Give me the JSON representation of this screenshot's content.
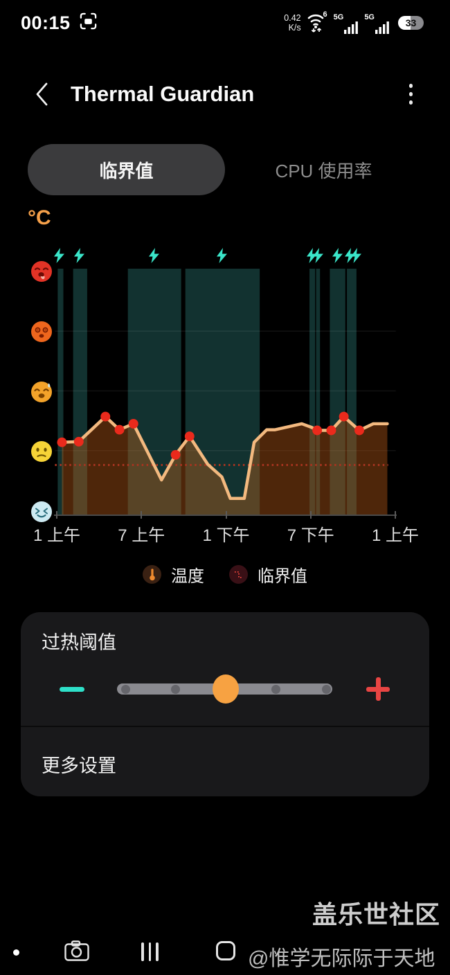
{
  "status_bar": {
    "time": "00:15",
    "net_speed_value": "0.42",
    "net_speed_unit": "K/s",
    "wifi_generation": "6",
    "signal_label_1": "5G",
    "signal_label_2": "5G",
    "battery_percent": "33"
  },
  "header": {
    "title": "Thermal Guardian"
  },
  "tabs": [
    {
      "label": "临界值",
      "active": true
    },
    {
      "label": "CPU 使用率",
      "active": false
    }
  ],
  "chart_data": {
    "type": "line",
    "unit_label": "°C",
    "x_tick_labels": [
      "1 上午",
      "7 上午",
      "1 下午",
      "7 下午",
      "1 上午"
    ],
    "x_axis_hours_range": [
      0,
      24
    ],
    "y_axis": {
      "style": "emoji-levels",
      "levels_bottom_to_top": [
        "face-relieved-blue",
        "face-displeased-yellow",
        "face-weary-amber",
        "face-hot-orange",
        "face-overheated-red"
      ]
    },
    "series": [
      {
        "name": "温度",
        "color": "#f3b97f",
        "fill": "rgba(194,96,24,0.40)",
        "marker_color": "#ea2a1c",
        "points": [
          {
            "h": 0.3,
            "level": 1.14,
            "dot": true
          },
          {
            "h": 1.5,
            "level": 1.15,
            "dot": true
          },
          {
            "h": 3.4,
            "level": 1.57,
            "dot": true
          },
          {
            "h": 4.4,
            "level": 1.35,
            "dot": true
          },
          {
            "h": 5.4,
            "level": 1.45,
            "dot": true
          },
          {
            "h": 7.4,
            "level": 0.51,
            "dot": false
          },
          {
            "h": 8.4,
            "level": 0.93,
            "dot": true
          },
          {
            "h": 9.4,
            "level": 1.24,
            "dot": true
          },
          {
            "h": 10.7,
            "level": 0.77,
            "dot": false
          },
          {
            "h": 11.7,
            "level": 0.56,
            "dot": false
          },
          {
            "h": 12.3,
            "level": 0.2,
            "dot": false
          },
          {
            "h": 13.3,
            "level": 0.2,
            "dot": false
          },
          {
            "h": 14.0,
            "level": 1.14,
            "dot": false
          },
          {
            "h": 14.9,
            "level": 1.35,
            "dot": false
          },
          {
            "h": 15.5,
            "level": 1.35,
            "dot": false
          },
          {
            "h": 17.4,
            "level": 1.45,
            "dot": false
          },
          {
            "h": 18.1,
            "level": 1.39,
            "dot": false
          },
          {
            "h": 18.5,
            "level": 1.34,
            "dot": true
          },
          {
            "h": 19.5,
            "level": 1.34,
            "dot": true
          },
          {
            "h": 20.4,
            "level": 1.57,
            "dot": true
          },
          {
            "h": 21.5,
            "level": 1.34,
            "dot": true
          },
          {
            "h": 22.5,
            "level": 1.45,
            "dot": false
          },
          {
            "h": 23.5,
            "level": 1.45,
            "dot": false
          }
        ]
      }
    ],
    "threshold": {
      "name": "临界值",
      "level": 0.76,
      "color": "#a83420",
      "style": "dotted"
    },
    "thermal_event_bands_hours": [
      [
        0,
        0.4
      ],
      [
        1.1,
        2.1
      ],
      [
        5.0,
        8.8
      ],
      [
        9.1,
        14.4
      ],
      [
        17.95,
        18.35
      ],
      [
        18.42,
        18.7
      ],
      [
        19.4,
        20.5
      ],
      [
        20.62,
        21.3
      ]
    ],
    "lightning_markers": [
      {
        "h": 0.15,
        "count": 1
      },
      {
        "h": 1.6,
        "count": 1
      },
      {
        "h": 6.9,
        "count": 1
      },
      {
        "h": 11.7,
        "count": 1
      },
      {
        "h": 18.3,
        "count": 2
      },
      {
        "h": 19.9,
        "count": 1
      },
      {
        "h": 21.0,
        "count": 2
      }
    ],
    "band_color": "#123230",
    "grid": true,
    "legend_position": "bottom"
  },
  "legend": [
    {
      "icon": "thermometer-icon",
      "label": "温度"
    },
    {
      "icon": "threshold-line-icon",
      "label": "临界值"
    }
  ],
  "settings_card": {
    "threshold_label": "过热阈值",
    "slider": {
      "positions": 5,
      "value_index": 2
    },
    "more_label": "更多设置"
  },
  "watermarks": {
    "community": "盖乐世社区",
    "user": "@惟学无际际于天地"
  },
  "colors": {
    "accent_orange": "#f7a242",
    "teal": "#2ee0c9",
    "red": "#e84543",
    "bolt_teal": "#3ae5c9"
  }
}
